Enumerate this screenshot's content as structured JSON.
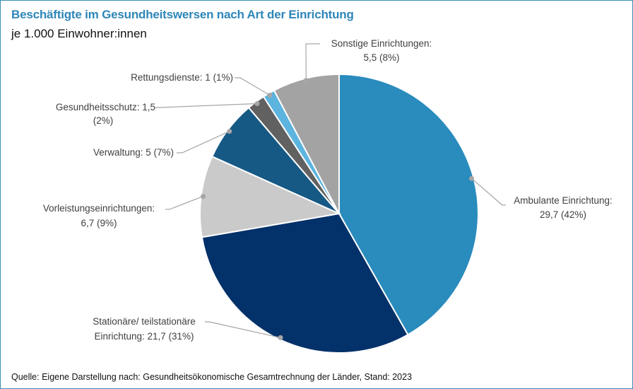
{
  "title": "Beschäftigte im Gesundheitswersen nach Art der Einrichtung",
  "subtitle": "je 1.000 Einwohner:innen",
  "source": "Quelle: Eigene Darstellung nach: Gesundheitsökonomische Gesamtrechnung der Länder, Stand: 2023",
  "frame_color": "#3a8fb7",
  "chart_data": {
    "type": "pie",
    "title": "Beschäftigte im Gesundheitswersen nach Art der Einrichtung",
    "subtitle": "je 1.000 Einwohner:innen",
    "start": "12 o'clock",
    "direction": "clockwise",
    "slices": [
      {
        "name": "Ambulante Einrichtung",
        "value": 29.7,
        "percent": 42,
        "color": "#2a8bbd",
        "label_lines": [
          "Ambulante Einrichtung:",
          "29,7 (42%)"
        ],
        "label_side": "right"
      },
      {
        "name": "Stationäre/ teilstationäre Einrichtung",
        "value": 21.7,
        "percent": 31,
        "color": "#03316a",
        "label_lines": [
          "Stationäre/ teilstationäre",
          "Einrichtung: 21,7 (31%)"
        ],
        "label_side": "left"
      },
      {
        "name": "Vorleistungseinrichtungen",
        "value": 6.7,
        "percent": 9,
        "color": "#cacaca",
        "label_lines": [
          "Vorleistungseinrichtungen:",
          "6,7 (9%)"
        ],
        "label_side": "left"
      },
      {
        "name": "Verwaltung",
        "value": 5,
        "percent": 7,
        "color": "#175985",
        "label_lines": [
          "Verwaltung: 5 (7%)"
        ],
        "label_side": "left"
      },
      {
        "name": "Gesundheitsschutz",
        "value": 1.5,
        "percent": 2,
        "color": "#616161",
        "label_lines": [
          "Gesundheitsschutz: 1,5",
          "(2%)"
        ],
        "label_side": "left"
      },
      {
        "name": "Rettungsdienste",
        "value": 1,
        "percent": 1,
        "color": "#5cb4df",
        "label_lines": [
          "Rettungsdienste: 1 (1%)"
        ],
        "label_side": "left"
      },
      {
        "name": "Sonstige Einrichtungen",
        "value": 5.5,
        "percent": 8,
        "color": "#a3a3a3",
        "label_lines": [
          "Sonstige Einrichtungen:",
          "5,5 (8%)"
        ],
        "label_side": "top"
      }
    ]
  }
}
